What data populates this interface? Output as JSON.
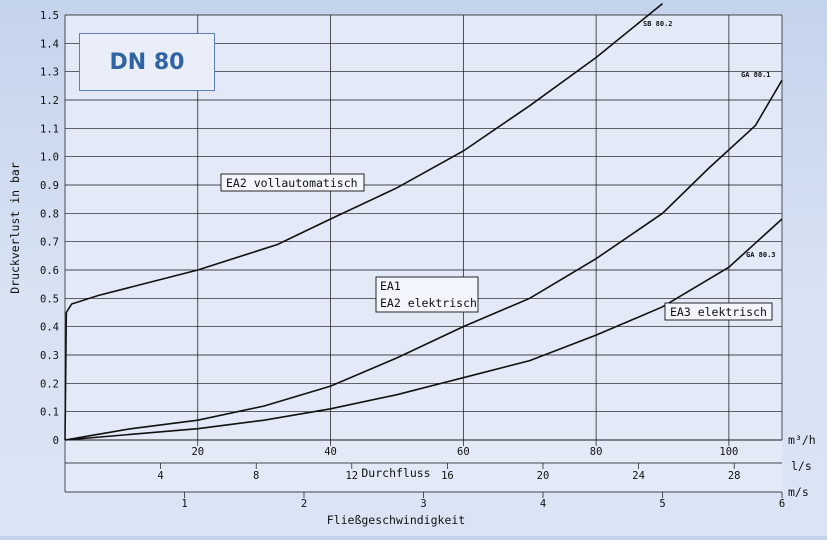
{
  "badge": {
    "title": "DN 80"
  },
  "chart_data": {
    "type": "line",
    "ylabel": "Druckverlust in bar",
    "ylim": [
      0,
      1.5
    ],
    "yticks": [
      "0",
      "0.1",
      "0.2",
      "0.3",
      "0.4",
      "0.5",
      "0.6",
      "0.7",
      "0.8",
      "0.9",
      "1.0",
      "1.1",
      "1.2",
      "1.3",
      "1.4",
      "1.5"
    ],
    "x_axes": [
      {
        "unit": "m³/h",
        "range": [
          0,
          108
        ],
        "ticks": [
          "20",
          "40",
          "60",
          "80",
          "100"
        ]
      },
      {
        "unit": "l/s",
        "title": "Durchfluss",
        "range": [
          0,
          30
        ],
        "ticks": [
          "4",
          "8",
          "12",
          "16",
          "20",
          "24",
          "28"
        ]
      },
      {
        "unit": "m/s",
        "title": "Fließgeschwindigkeit",
        "range": [
          0,
          6
        ],
        "ticks": [
          "1",
          "2",
          "3",
          "4",
          "5",
          "6"
        ]
      }
    ],
    "series": [
      {
        "name": "SB 80.2",
        "x": [
          0,
          0.2,
          1,
          5,
          10,
          20,
          32,
          40,
          50,
          60,
          70,
          80,
          90
        ],
        "y": [
          0,
          0.45,
          0.48,
          0.51,
          0.54,
          0.6,
          0.69,
          0.78,
          0.89,
          1.02,
          1.18,
          1.35,
          1.54
        ]
      },
      {
        "name": "GA 80.1",
        "x": [
          0,
          5,
          10,
          20,
          30,
          40,
          50,
          60,
          70,
          80,
          90,
          97,
          104,
          108
        ],
        "y": [
          0,
          0.02,
          0.04,
          0.07,
          0.12,
          0.19,
          0.29,
          0.4,
          0.5,
          0.64,
          0.8,
          0.96,
          1.11,
          1.27
        ]
      },
      {
        "name": "GA 80.3",
        "x": [
          0,
          10,
          20,
          30,
          40,
          50,
          60,
          70,
          80,
          90,
          100,
          108
        ],
        "y": [
          0,
          0.02,
          0.04,
          0.07,
          0.11,
          0.16,
          0.22,
          0.28,
          0.37,
          0.47,
          0.61,
          0.78
        ]
      }
    ],
    "annotations": {
      "ea2_voll": "EA2 vollautomatisch",
      "ea1": "EA1",
      "ea2_elek": "EA2 elektrisch",
      "ea3_elek": "EA3 elektrisch"
    }
  }
}
